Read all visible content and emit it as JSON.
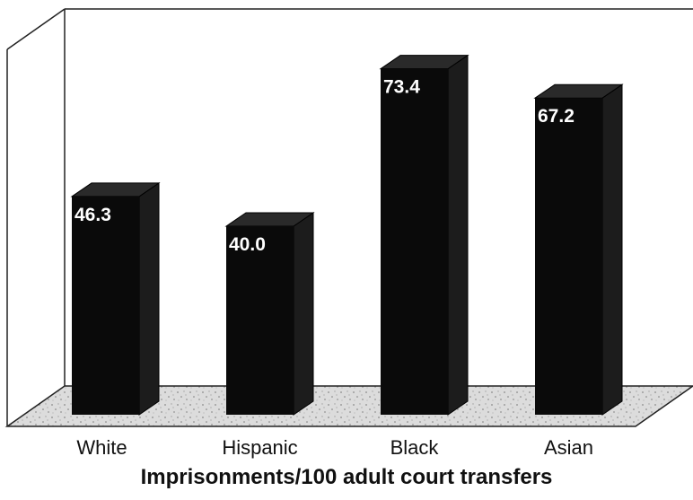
{
  "chart_data": {
    "type": "bar",
    "title": "",
    "xlabel": "Imprisonments/100 adult court transfers",
    "ylabel": "",
    "categories": [
      "White",
      "Hispanic",
      "Black",
      "Asian"
    ],
    "values": [
      46.3,
      40.0,
      73.4,
      67.2
    ],
    "value_labels": [
      "46.3",
      "40.0",
      "73.4",
      "67.2"
    ],
    "ylim": [
      0,
      80
    ],
    "grid": false,
    "legend": "none",
    "style": "3d",
    "colors": {
      "bar": "#0a0a0a",
      "value_text": "#ffffff",
      "floor": "#d9d9d9",
      "frame": "#222222"
    }
  }
}
